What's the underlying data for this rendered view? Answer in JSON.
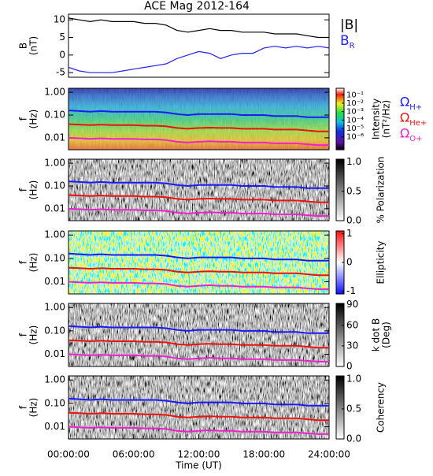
{
  "chart_data": [
    {
      "type": "line",
      "title": "ACE Mag 2012-164",
      "ylabel": [
        "B",
        "(nT)"
      ],
      "x": [
        0,
        1,
        2,
        3,
        4,
        5,
        6,
        7,
        8,
        9,
        10,
        11,
        12,
        13,
        14,
        15,
        16,
        17,
        18,
        19,
        20,
        21,
        22,
        23,
        24
      ],
      "xlim": [
        0,
        24
      ],
      "ylim": [
        -6.3,
        11.6
      ],
      "yticks": [
        -5,
        0,
        5,
        10
      ],
      "series": [
        {
          "name": "|B|",
          "color": "#000000",
          "values": [
            10.5,
            10,
            9.5,
            10,
            9.5,
            9.5,
            9.5,
            9,
            9,
            8.5,
            7,
            6.5,
            7,
            7.5,
            7,
            7,
            6.5,
            6.5,
            6.5,
            6,
            6,
            6,
            5.5,
            5,
            5
          ]
        },
        {
          "name": "B",
          "subscript": "R",
          "color": "#2222ee",
          "values": [
            -3.5,
            -4.5,
            -5,
            -5,
            -5,
            -4.5,
            -4,
            -3.5,
            -3,
            -2.5,
            -1,
            0,
            1,
            0.5,
            -1,
            0,
            0.5,
            0.5,
            2,
            2.5,
            2,
            2.5,
            2,
            2.5,
            2
          ]
        }
      ]
    },
    {
      "type": "spectrogram",
      "ylabel": [
        "f",
        "(Hz)"
      ],
      "ylog": true,
      "colormap": "rainbow",
      "x": [
        0,
        1,
        2,
        3,
        4,
        5,
        6,
        7,
        8,
        9,
        10,
        11,
        12,
        13,
        14,
        15,
        16,
        17,
        18,
        19,
        20,
        21,
        22,
        23,
        24
      ],
      "xlim": [
        0,
        24
      ],
      "ylim": [
        0.003,
        1.5
      ],
      "yticks": [
        {
          "value": 0.01,
          "label": "0.01"
        },
        {
          "value": 0.1,
          "label": "0.10"
        },
        {
          "value": 1,
          "label": "1.00"
        }
      ],
      "clabel": [
        "Intensity",
        "(nT²/Hz)"
      ],
      "clog": true,
      "clim": [
        3e-08,
        0.6
      ],
      "cticks": [
        {
          "value": 0.1,
          "label": "10⁻¹"
        },
        {
          "value": 0.01,
          "label": "10⁻²"
        },
        {
          "value": 0.001,
          "label": "10⁻³"
        },
        {
          "value": 0.0001,
          "label": "10⁻⁴"
        },
        {
          "value": 1e-05,
          "label": "10⁻⁵"
        },
        {
          "value": 1e-06,
          "label": "10⁻⁶"
        }
      ],
      "series": [
        {
          "name": "Ω",
          "subscript": "H+",
          "color": "#1a1aff",
          "values": [
            0.16,
            0.15,
            0.14,
            0.15,
            0.14,
            0.14,
            0.14,
            0.14,
            0.14,
            0.13,
            0.11,
            0.1,
            0.11,
            0.11,
            0.11,
            0.11,
            0.1,
            0.1,
            0.1,
            0.09,
            0.09,
            0.09,
            0.08,
            0.08,
            0.08
          ]
        },
        {
          "name": "Ω",
          "subscript": "He+",
          "color": "#ee1111",
          "values": [
            0.04,
            0.038,
            0.036,
            0.038,
            0.036,
            0.036,
            0.036,
            0.034,
            0.034,
            0.032,
            0.027,
            0.025,
            0.027,
            0.028,
            0.027,
            0.027,
            0.025,
            0.025,
            0.025,
            0.023,
            0.023,
            0.023,
            0.021,
            0.019,
            0.019
          ]
        },
        {
          "name": "Ω",
          "subscript": "O+",
          "color": "#ee22cc",
          "values": [
            0.01,
            0.0095,
            0.009,
            0.0095,
            0.009,
            0.009,
            0.009,
            0.0085,
            0.0085,
            0.008,
            0.0067,
            0.0062,
            0.0067,
            0.0071,
            0.0067,
            0.0067,
            0.0062,
            0.0062,
            0.0062,
            0.0057,
            0.0057,
            0.0057,
            0.0052,
            0.0048,
            0.0048
          ]
        }
      ]
    },
    {
      "type": "spectrogram",
      "ylabel": [
        "f",
        "(Hz)"
      ],
      "ylog": true,
      "colormap": "gray",
      "x": [
        0,
        1,
        2,
        3,
        4,
        5,
        6,
        7,
        8,
        9,
        10,
        11,
        12,
        13,
        14,
        15,
        16,
        17,
        18,
        19,
        20,
        21,
        22,
        23,
        24
      ],
      "xlim": [
        0,
        24
      ],
      "ylim": [
        0.003,
        1.5
      ],
      "yticks": [
        {
          "value": 0.01,
          "label": "0.01"
        },
        {
          "value": 0.1,
          "label": "0.10"
        },
        {
          "value": 1,
          "label": "1.00"
        }
      ],
      "clabel": [
        "% Polarization"
      ],
      "clim": [
        0,
        1.05
      ],
      "cticks": [
        {
          "value": 0,
          "label": "0.0"
        },
        {
          "value": 0.5,
          "label": "0.5"
        },
        {
          "value": 1,
          "label": "1.0"
        }
      ],
      "series": [
        {
          "color": "#1a1aff",
          "values": [
            0.16,
            0.15,
            0.14,
            0.15,
            0.14,
            0.14,
            0.14,
            0.14,
            0.14,
            0.13,
            0.11,
            0.1,
            0.11,
            0.11,
            0.11,
            0.11,
            0.1,
            0.1,
            0.1,
            0.09,
            0.09,
            0.09,
            0.08,
            0.08,
            0.08
          ]
        },
        {
          "color": "#ee1111",
          "values": [
            0.04,
            0.038,
            0.036,
            0.038,
            0.036,
            0.036,
            0.036,
            0.034,
            0.034,
            0.032,
            0.027,
            0.025,
            0.027,
            0.028,
            0.027,
            0.027,
            0.025,
            0.025,
            0.025,
            0.023,
            0.023,
            0.023,
            0.021,
            0.019,
            0.019
          ]
        },
        {
          "color": "#ee22cc",
          "values": [
            0.01,
            0.0095,
            0.009,
            0.0095,
            0.009,
            0.009,
            0.009,
            0.0085,
            0.0085,
            0.008,
            0.0067,
            0.0062,
            0.0067,
            0.0071,
            0.0067,
            0.0067,
            0.0062,
            0.0062,
            0.0062,
            0.0057,
            0.0057,
            0.0057,
            0.0052,
            0.0048,
            0.0048
          ]
        }
      ]
    },
    {
      "type": "spectrogram",
      "ylabel": [
        "f",
        "(Hz)"
      ],
      "ylog": true,
      "colormap": "bwr",
      "x": [
        0,
        1,
        2,
        3,
        4,
        5,
        6,
        7,
        8,
        9,
        10,
        11,
        12,
        13,
        14,
        15,
        16,
        17,
        18,
        19,
        20,
        21,
        22,
        23,
        24
      ],
      "xlim": [
        0,
        24
      ],
      "ylim": [
        0.003,
        1.5
      ],
      "yticks": [
        {
          "value": 0.01,
          "label": "0.01"
        },
        {
          "value": 0.1,
          "label": "0.10"
        },
        {
          "value": 1,
          "label": "1.00"
        }
      ],
      "clabel": [
        "Ellipticity"
      ],
      "clim": [
        -1.1,
        1.1
      ],
      "cticks": [
        -1,
        0,
        1
      ],
      "series": [
        {
          "color": "#1a1aff",
          "values": [
            0.16,
            0.15,
            0.14,
            0.15,
            0.14,
            0.14,
            0.14,
            0.14,
            0.14,
            0.13,
            0.11,
            0.1,
            0.11,
            0.11,
            0.11,
            0.11,
            0.1,
            0.1,
            0.1,
            0.09,
            0.09,
            0.09,
            0.08,
            0.08,
            0.08
          ]
        },
        {
          "color": "#ee1111",
          "values": [
            0.04,
            0.038,
            0.036,
            0.038,
            0.036,
            0.036,
            0.036,
            0.034,
            0.034,
            0.032,
            0.027,
            0.025,
            0.027,
            0.028,
            0.027,
            0.027,
            0.025,
            0.025,
            0.025,
            0.023,
            0.023,
            0.023,
            0.021,
            0.019,
            0.019
          ]
        },
        {
          "color": "#ee22cc",
          "values": [
            0.01,
            0.0095,
            0.009,
            0.0095,
            0.009,
            0.009,
            0.009,
            0.0085,
            0.0085,
            0.008,
            0.0067,
            0.0062,
            0.0067,
            0.0071,
            0.0067,
            0.0067,
            0.0062,
            0.0062,
            0.0062,
            0.0057,
            0.0057,
            0.0057,
            0.0052,
            0.0048,
            0.0048
          ]
        }
      ]
    },
    {
      "type": "spectrogram",
      "ylabel": [
        "f",
        "(Hz)"
      ],
      "ylog": true,
      "colormap": "gray",
      "x": [
        0,
        1,
        2,
        3,
        4,
        5,
        6,
        7,
        8,
        9,
        10,
        11,
        12,
        13,
        14,
        15,
        16,
        17,
        18,
        19,
        20,
        21,
        22,
        23,
        24
      ],
      "xlim": [
        0,
        24
      ],
      "ylim": [
        0.003,
        1.5
      ],
      "yticks": [
        {
          "value": 0.01,
          "label": "0.01"
        },
        {
          "value": 0.1,
          "label": "0.10"
        },
        {
          "value": 1,
          "label": "1.00"
        }
      ],
      "clabel": [
        "k dot B",
        "(Deg)"
      ],
      "clim": [
        0,
        92
      ],
      "cticks": [
        0,
        30,
        60,
        90
      ],
      "series": [
        {
          "color": "#1a1aff",
          "values": [
            0.16,
            0.15,
            0.14,
            0.15,
            0.14,
            0.14,
            0.14,
            0.14,
            0.14,
            0.13,
            0.11,
            0.1,
            0.11,
            0.11,
            0.11,
            0.11,
            0.1,
            0.1,
            0.1,
            0.09,
            0.09,
            0.09,
            0.08,
            0.08,
            0.08
          ]
        },
        {
          "color": "#ee1111",
          "values": [
            0.04,
            0.038,
            0.036,
            0.038,
            0.036,
            0.036,
            0.036,
            0.034,
            0.034,
            0.032,
            0.027,
            0.025,
            0.027,
            0.028,
            0.027,
            0.027,
            0.025,
            0.025,
            0.025,
            0.023,
            0.023,
            0.023,
            0.021,
            0.019,
            0.019
          ]
        },
        {
          "color": "#ee22cc",
          "values": [
            0.01,
            0.0095,
            0.009,
            0.0095,
            0.009,
            0.009,
            0.009,
            0.0085,
            0.0085,
            0.008,
            0.0067,
            0.0062,
            0.0067,
            0.0071,
            0.0067,
            0.0067,
            0.0062,
            0.0062,
            0.0062,
            0.0057,
            0.0057,
            0.0057,
            0.0052,
            0.0048,
            0.0048
          ]
        }
      ]
    },
    {
      "type": "spectrogram",
      "ylabel": [
        "f",
        "(Hz)"
      ],
      "ylog": true,
      "colormap": "gray",
      "x": [
        0,
        1,
        2,
        3,
        4,
        5,
        6,
        7,
        8,
        9,
        10,
        11,
        12,
        13,
        14,
        15,
        16,
        17,
        18,
        19,
        20,
        21,
        22,
        23,
        24
      ],
      "xlim": [
        0,
        24
      ],
      "ylim": [
        0.003,
        1.5
      ],
      "yticks": [
        {
          "value": 0.01,
          "label": "0.01"
        },
        {
          "value": 0.1,
          "label": "0.10"
        },
        {
          "value": 1,
          "label": "1.00"
        }
      ],
      "clabel": [
        "Coherency"
      ],
      "clim": [
        0,
        1.05
      ],
      "cticks": [
        {
          "value": 0,
          "label": "0.0"
        },
        {
          "value": 0.5,
          "label": "0.5"
        },
        {
          "value": 1,
          "label": "1.0"
        }
      ],
      "xlabel": "Time (UT)",
      "xticks": [
        {
          "value": 0,
          "label": "00:00:00"
        },
        {
          "value": 6,
          "label": "06:00:00"
        },
        {
          "value": 12,
          "label": "12:00:00"
        },
        {
          "value": 18,
          "label": "18:00:00"
        },
        {
          "value": 24,
          "label": "24:00:00"
        }
      ],
      "series": [
        {
          "color": "#1a1aff",
          "values": [
            0.16,
            0.15,
            0.14,
            0.15,
            0.14,
            0.14,
            0.14,
            0.14,
            0.14,
            0.13,
            0.11,
            0.1,
            0.11,
            0.11,
            0.11,
            0.11,
            0.1,
            0.1,
            0.1,
            0.09,
            0.09,
            0.09,
            0.08,
            0.08,
            0.08
          ]
        },
        {
          "color": "#ee1111",
          "values": [
            0.04,
            0.038,
            0.036,
            0.038,
            0.036,
            0.036,
            0.036,
            0.034,
            0.034,
            0.032,
            0.027,
            0.025,
            0.027,
            0.028,
            0.027,
            0.027,
            0.025,
            0.025,
            0.025,
            0.023,
            0.023,
            0.023,
            0.021,
            0.019,
            0.019
          ]
        },
        {
          "color": "#ee22cc",
          "values": [
            0.01,
            0.0095,
            0.009,
            0.0095,
            0.009,
            0.009,
            0.009,
            0.0085,
            0.0085,
            0.008,
            0.0067,
            0.0062,
            0.0067,
            0.0071,
            0.0067,
            0.0067,
            0.0062,
            0.0062,
            0.0062,
            0.0057,
            0.0057,
            0.0057,
            0.0052,
            0.0048,
            0.0048
          ]
        }
      ]
    }
  ]
}
